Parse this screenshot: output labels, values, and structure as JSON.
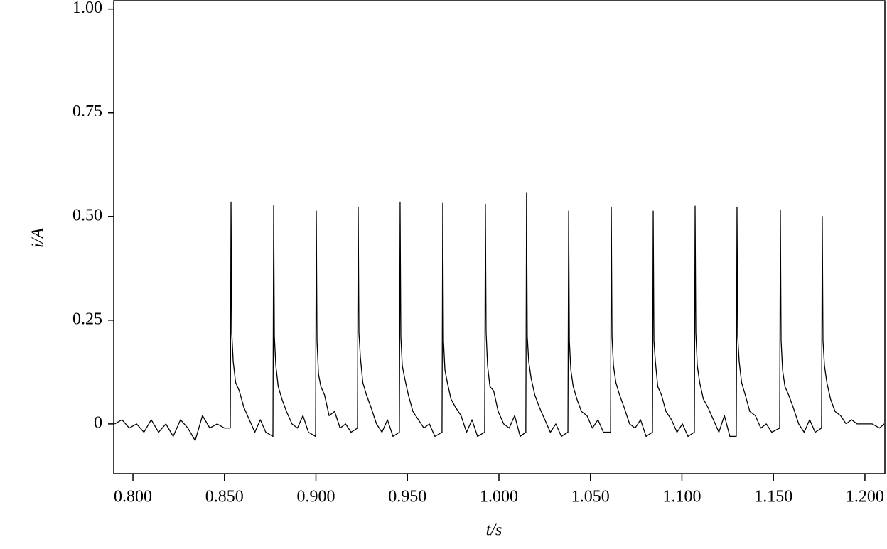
{
  "chart_data": {
    "type": "line",
    "x_label": "t/s",
    "y_label": "i/A",
    "xlim": [
      0.7895,
      1.2109
    ],
    "ylim": [
      -0.12,
      1.02
    ],
    "xticks": [
      {
        "value": 0.8,
        "label": "0.800"
      },
      {
        "value": 0.85,
        "label": "0.850"
      },
      {
        "value": 0.9,
        "label": "0.900"
      },
      {
        "value": 0.95,
        "label": "0.950"
      },
      {
        "value": 1.0,
        "label": "1.000"
      },
      {
        "value": 1.05,
        "label": "1.050"
      },
      {
        "value": 1.1,
        "label": "1.100"
      },
      {
        "value": 1.15,
        "label": "1.150"
      },
      {
        "value": 1.2,
        "label": "1.200"
      }
    ],
    "yticks": [
      0,
      0.25,
      {
        "value": 0.5,
        "label": "0.50"
      },
      0.75,
      {
        "value": 1.0,
        "label": "1.00"
      }
    ],
    "grid": false,
    "series": [
      {
        "color": "#000000",
        "x": [
          0.79,
          0.794,
          0.798,
          0.802,
          0.806,
          0.81,
          0.814,
          0.818,
          0.822,
          0.826,
          0.83,
          0.834,
          0.838,
          0.842,
          0.846,
          0.85,
          0.8532,
          0.8536,
          0.854,
          0.8548,
          0.8561,
          0.8581,
          0.8606,
          0.8636,
          0.8666,
          0.8696,
          0.8726,
          0.8765,
          0.8769,
          0.8773,
          0.8781,
          0.8794,
          0.8814,
          0.8839,
          0.8869,
          0.8899,
          0.8929,
          0.8959,
          0.8998,
          0.9002,
          0.9006,
          0.9014,
          0.9027,
          0.9047,
          0.9072,
          0.9102,
          0.9132,
          0.9162,
          0.9192,
          0.9227,
          0.9231,
          0.9235,
          0.9243,
          0.9256,
          0.9276,
          0.9301,
          0.9331,
          0.9361,
          0.9391,
          0.9421,
          0.9456,
          0.946,
          0.9464,
          0.9472,
          0.9485,
          0.9505,
          0.953,
          0.956,
          0.959,
          0.962,
          0.965,
          0.9689,
          0.9693,
          0.9697,
          0.9705,
          0.9718,
          0.9738,
          0.9763,
          0.9793,
          0.9823,
          0.9853,
          0.9883,
          0.9922,
          0.9926,
          0.993,
          0.9938,
          0.9951,
          0.9971,
          0.9996,
          1.0026,
          1.0056,
          1.0086,
          1.0116,
          1.0147,
          1.0151,
          1.0155,
          1.0163,
          1.0176,
          1.0196,
          1.0221,
          1.0251,
          1.0281,
          1.0311,
          1.0341,
          1.0377,
          1.0381,
          1.0385,
          1.0393,
          1.0406,
          1.0426,
          1.0451,
          1.0481,
          1.0511,
          1.0541,
          1.0571,
          1.061,
          1.0614,
          1.0618,
          1.0626,
          1.0639,
          1.0659,
          1.0684,
          1.0714,
          1.0744,
          1.0774,
          1.0804,
          1.0839,
          1.0843,
          1.0847,
          1.0855,
          1.0868,
          1.0888,
          1.0913,
          1.0943,
          1.0973,
          1.1003,
          1.1033,
          1.1068,
          1.1072,
          1.1076,
          1.1084,
          1.1097,
          1.1117,
          1.1142,
          1.1172,
          1.1202,
          1.1232,
          1.1262,
          1.1297,
          1.1301,
          1.1305,
          1.1313,
          1.1326,
          1.1346,
          1.1371,
          1.1401,
          1.1431,
          1.1461,
          1.1491,
          1.1534,
          1.1538,
          1.1542,
          1.155,
          1.1563,
          1.1583,
          1.1608,
          1.1638,
          1.1668,
          1.1698,
          1.1728,
          1.1763,
          1.1767,
          1.1771,
          1.1779,
          1.1792,
          1.1812,
          1.1837,
          1.1867,
          1.1897,
          1.1927,
          1.1957,
          1.2,
          1.204,
          1.208,
          1.2105
        ],
        "values": [
          0.0,
          0.01,
          -0.01,
          0.0,
          -0.02,
          0.01,
          -0.02,
          0.0,
          -0.03,
          0.01,
          -0.01,
          -0.04,
          0.02,
          -0.01,
          0.0,
          -0.01,
          -0.01,
          0.535,
          0.22,
          0.15,
          0.1,
          0.08,
          0.04,
          0.01,
          -0.02,
          0.01,
          -0.02,
          -0.03,
          0.526,
          0.21,
          0.14,
          0.09,
          0.06,
          0.03,
          0.0,
          -0.01,
          0.02,
          -0.02,
          -0.03,
          0.513,
          0.2,
          0.12,
          0.09,
          0.07,
          0.02,
          0.03,
          -0.01,
          0.0,
          -0.02,
          -0.01,
          0.523,
          0.22,
          0.16,
          0.1,
          0.07,
          0.04,
          0.0,
          -0.02,
          0.01,
          -0.03,
          -0.02,
          0.535,
          0.21,
          0.14,
          0.11,
          0.07,
          0.03,
          0.01,
          -0.01,
          0.0,
          -0.03,
          -0.02,
          0.532,
          0.2,
          0.13,
          0.1,
          0.06,
          0.04,
          0.02,
          -0.02,
          0.01,
          -0.03,
          -0.02,
          0.53,
          0.22,
          0.14,
          0.09,
          0.08,
          0.03,
          0.0,
          -0.01,
          0.02,
          -0.03,
          -0.02,
          0.556,
          0.21,
          0.15,
          0.11,
          0.07,
          0.04,
          0.01,
          -0.02,
          0.0,
          -0.03,
          -0.02,
          0.513,
          0.2,
          0.13,
          0.09,
          0.06,
          0.03,
          0.02,
          -0.01,
          0.01,
          -0.02,
          -0.02,
          0.523,
          0.21,
          0.14,
          0.1,
          0.07,
          0.04,
          0.0,
          -0.01,
          0.01,
          -0.03,
          -0.02,
          0.513,
          0.2,
          0.15,
          0.09,
          0.07,
          0.03,
          0.01,
          -0.02,
          0.0,
          -0.03,
          -0.02,
          0.525,
          0.22,
          0.14,
          0.1,
          0.06,
          0.04,
          0.01,
          -0.02,
          0.02,
          -0.03,
          -0.03,
          0.523,
          0.21,
          0.15,
          0.1,
          0.07,
          0.03,
          0.02,
          -0.01,
          0.0,
          -0.02,
          -0.01,
          0.516,
          0.2,
          0.13,
          0.09,
          0.07,
          0.04,
          0.0,
          -0.02,
          0.01,
          -0.02,
          -0.01,
          0.5,
          0.2,
          0.14,
          0.1,
          0.06,
          0.03,
          0.02,
          0.0,
          0.01,
          0.0,
          0.0,
          0.0,
          -0.01,
          0.0
        ]
      }
    ]
  }
}
